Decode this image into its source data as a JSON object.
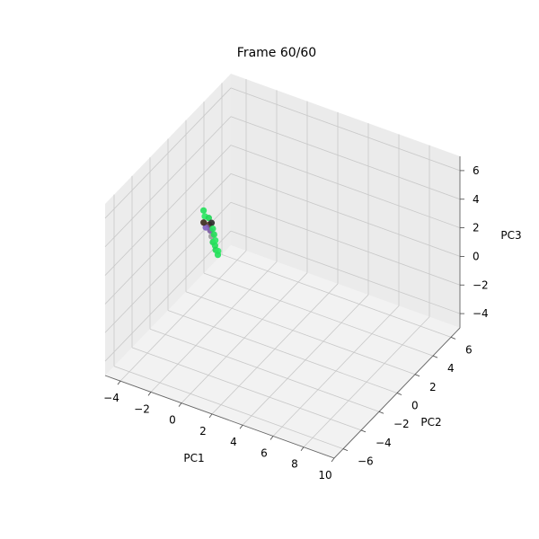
{
  "chart_data": {
    "type": "scatter",
    "projection": "3d",
    "title": "Frame 60/60",
    "xlabel": "PC1",
    "ylabel": "PC2",
    "zlabel": "PC3",
    "xlim": [
      -5,
      10
    ],
    "ylim": [
      -7,
      7
    ],
    "zlim": [
      -5,
      7
    ],
    "xticks": [
      -4,
      -2,
      0,
      2,
      4,
      6,
      8,
      10
    ],
    "yticks": [
      -6,
      -4,
      -2,
      0,
      2,
      4,
      6
    ],
    "zticks": [
      -4,
      -2,
      0,
      2,
      4,
      6
    ],
    "grid": true,
    "pane_color": "#f2f2f2",
    "grid_color": "#cccccc",
    "points": [
      {
        "x": -4.2,
        "y": 2.6,
        "z": 0.6,
        "color": "#22e05a"
      },
      {
        "x": -4.0,
        "y": 2.4,
        "z": 0.4,
        "color": "#2ae862"
      },
      {
        "x": -3.8,
        "y": 2.5,
        "z": 0.3,
        "color": "#1fd655"
      },
      {
        "x": -3.6,
        "y": 2.2,
        "z": 0.1,
        "color": "#5a3a2a"
      },
      {
        "x": -3.5,
        "y": 2.3,
        "z": 0.2,
        "color": "#2a2a2a"
      },
      {
        "x": -3.4,
        "y": 2.0,
        "z": -0.1,
        "color": "#7a5aa0"
      },
      {
        "x": -3.3,
        "y": 2.1,
        "z": 0.0,
        "color": "#24e05c"
      },
      {
        "x": -3.2,
        "y": 1.8,
        "z": -0.3,
        "color": "#9a9a9a"
      },
      {
        "x": -3.1,
        "y": 1.9,
        "z": -0.2,
        "color": "#22dd58"
      },
      {
        "x": -3.0,
        "y": 1.6,
        "z": -0.5,
        "color": "#1fd655"
      },
      {
        "x": -2.9,
        "y": 1.7,
        "z": -0.4,
        "color": "#2ae862"
      },
      {
        "x": -2.8,
        "y": 1.5,
        "z": -0.6,
        "color": "#22e05a"
      },
      {
        "x": -2.7,
        "y": 1.4,
        "z": -0.8,
        "color": "#1fd655"
      },
      {
        "x": -2.6,
        "y": 1.5,
        "z": -0.9,
        "color": "#2ae862"
      },
      {
        "x": -2.5,
        "y": 1.3,
        "z": -1.0,
        "color": "#22e05a"
      },
      {
        "x": -3.7,
        "y": 2.0,
        "z": 0.0,
        "color": "#8060c0"
      },
      {
        "x": -3.9,
        "y": 2.1,
        "z": 0.2,
        "color": "#3a2a1a"
      }
    ]
  }
}
